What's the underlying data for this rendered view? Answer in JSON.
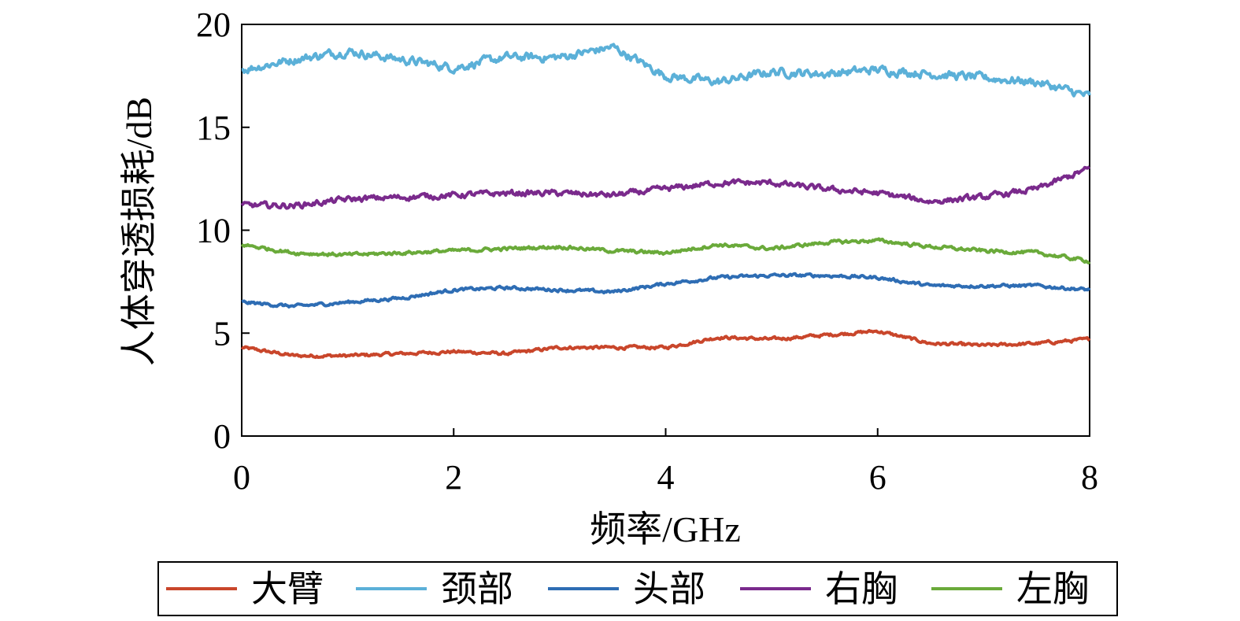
{
  "chart_data": {
    "type": "line",
    "xlabel": "频率/GHz",
    "ylabel": "人体穿透损耗/dB",
    "xlim": [
      0,
      8
    ],
    "ylim": [
      0,
      20
    ],
    "x_ticks": [
      "0",
      "2",
      "4",
      "6",
      "8"
    ],
    "y_ticks": [
      "0",
      "5",
      "10",
      "15",
      "20"
    ],
    "grid": false,
    "legend_position": "bottom",
    "x": [
      0,
      0.5,
      1,
      1.5,
      2,
      2.5,
      3,
      3.5,
      4,
      4.5,
      5,
      5.5,
      6,
      6.5,
      7,
      7.5,
      8
    ],
    "series": [
      {
        "name": "大臂",
        "color": "#C9462B",
        "values": [
          4.3,
          3.9,
          3.9,
          4.0,
          4.1,
          4.0,
          4.3,
          4.3,
          4.3,
          4.8,
          4.7,
          4.9,
          5.1,
          4.5,
          4.4,
          4.5,
          4.7
        ]
      },
      {
        "name": "颈部",
        "color": "#5BB0D8",
        "values": [
          17.8,
          18.3,
          18.7,
          18.3,
          17.9,
          18.4,
          18.4,
          18.9,
          17.5,
          17.2,
          17.7,
          17.6,
          17.8,
          17.6,
          17.4,
          17.2,
          16.5
        ]
      },
      {
        "name": "头部",
        "color": "#2E6DB4",
        "values": [
          6.5,
          6.3,
          6.5,
          6.7,
          7.1,
          7.2,
          7.1,
          7.0,
          7.4,
          7.7,
          7.8,
          7.8,
          7.7,
          7.3,
          7.3,
          7.3,
          7.1
        ]
      },
      {
        "name": "右胸",
        "color": "#7A2A8C",
        "values": [
          11.2,
          11.2,
          11.5,
          11.6,
          11.7,
          11.8,
          11.8,
          11.7,
          12.0,
          12.3,
          12.3,
          12.0,
          11.8,
          11.4,
          11.6,
          12.0,
          13.0
        ]
      },
      {
        "name": "左胸",
        "color": "#6AAA3A",
        "values": [
          9.3,
          8.9,
          8.8,
          8.9,
          9.0,
          9.1,
          9.2,
          9.0,
          8.9,
          9.3,
          9.1,
          9.4,
          9.5,
          9.2,
          9.0,
          8.9,
          8.5
        ]
      }
    ]
  }
}
